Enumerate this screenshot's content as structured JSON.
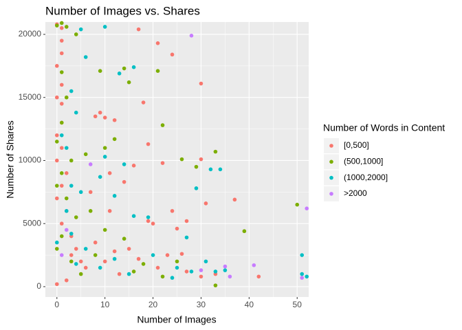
{
  "chart_data": {
    "type": "scatter",
    "title": "Number of Images vs. Shares",
    "x_label": "Number of Images",
    "y_label": "Number of Shares",
    "legend_title": "Number of Words in Content",
    "legend_position": "right",
    "grid": true,
    "xlim": [
      -2.4,
      52.4
    ],
    "ylim": [
      -820,
      20980
    ],
    "xticks": [
      0,
      10,
      20,
      30,
      40,
      50
    ],
    "yticks": [
      0,
      5000,
      10000,
      15000,
      20000
    ],
    "series": [
      {
        "name": "[0,500]",
        "color": "#F8766D",
        "x": [
          0,
          1,
          1,
          1,
          0,
          1,
          0,
          1,
          1,
          0,
          1,
          0,
          2,
          1,
          0,
          2,
          1,
          3,
          4,
          5,
          8,
          9,
          10,
          12,
          17,
          21,
          24,
          30,
          18,
          19,
          22,
          30,
          37,
          31,
          24,
          27,
          19,
          42,
          16,
          11,
          14,
          7,
          11,
          20,
          25,
          15,
          10,
          13,
          21,
          27,
          30,
          6,
          2,
          0,
          3,
          8,
          12,
          17,
          23,
          26,
          33
        ],
        "y": [
          20800,
          20500,
          19500,
          18500,
          17500,
          16000,
          15000,
          14500,
          13000,
          12000,
          11000,
          10000,
          9000,
          8000,
          7000,
          6000,
          5000,
          4000,
          3000,
          2000,
          13500,
          13800,
          13400,
          13200,
          20400,
          19300,
          18400,
          16100,
          14600,
          11300,
          9800,
          10100,
          6900,
          6600,
          6000,
          5200,
          5200,
          800,
          9600,
          9000,
          8300,
          7500,
          6000,
          5000,
          4600,
          3000,
          2000,
          1000,
          1500,
          1200,
          800,
          1500,
          500,
          200,
          2500,
          3500,
          2800,
          2200,
          2500,
          2600,
          1000
        ]
      },
      {
        "name": "(500,1000]",
        "color": "#7CAE00",
        "x": [
          0,
          1,
          2,
          4,
          9,
          14,
          15,
          21,
          22,
          33,
          26,
          29,
          50,
          39,
          33,
          12,
          10,
          6,
          3,
          1,
          0,
          2,
          4,
          1,
          0,
          3,
          5,
          8,
          10,
          14,
          18,
          22,
          2,
          1,
          0,
          7,
          16,
          25,
          1
        ],
        "y": [
          20700,
          20900,
          20600,
          20000,
          17100,
          17300,
          16200,
          17100,
          12800,
          10700,
          10100,
          9500,
          6500,
          4400,
          100,
          11700,
          11000,
          10500,
          10000,
          9000,
          8000,
          7000,
          5500,
          4000,
          3000,
          2000,
          1000,
          2500,
          4500,
          3800,
          1800,
          800,
          15000,
          13000,
          11500,
          6000,
          1200,
          2000,
          17000
        ]
      },
      {
        "name": "(1000,2000]",
        "color": "#00BFC4",
        "x": [
          5,
          10,
          6,
          13,
          16,
          3,
          4,
          10,
          14,
          9,
          5,
          12,
          16,
          29,
          32,
          34,
          19,
          27,
          31,
          33,
          35,
          51,
          51,
          52,
          2,
          3,
          6,
          9,
          12,
          15,
          20,
          24,
          1,
          2,
          3,
          0,
          4,
          25,
          28
        ],
        "y": [
          20400,
          20600,
          18200,
          16900,
          17400,
          15500,
          13800,
          10300,
          9700,
          8700,
          7500,
          7200,
          5600,
          7800,
          9300,
          9300,
          5500,
          3900,
          2000,
          1200,
          1300,
          2500,
          1000,
          800,
          6000,
          4200,
          3000,
          1500,
          2200,
          1000,
          2500,
          700,
          12000,
          11000,
          8000,
          3500,
          1800,
          1500,
          1200
        ]
      },
      {
        "name": ">2000",
        "color": "#C77CFF",
        "x": [
          28,
          52,
          41,
          51,
          7,
          35,
          36,
          30,
          2,
          1
        ],
        "y": [
          19900,
          6200,
          1700,
          700,
          9700,
          1600,
          800,
          1300,
          4500,
          2500
        ]
      }
    ]
  }
}
